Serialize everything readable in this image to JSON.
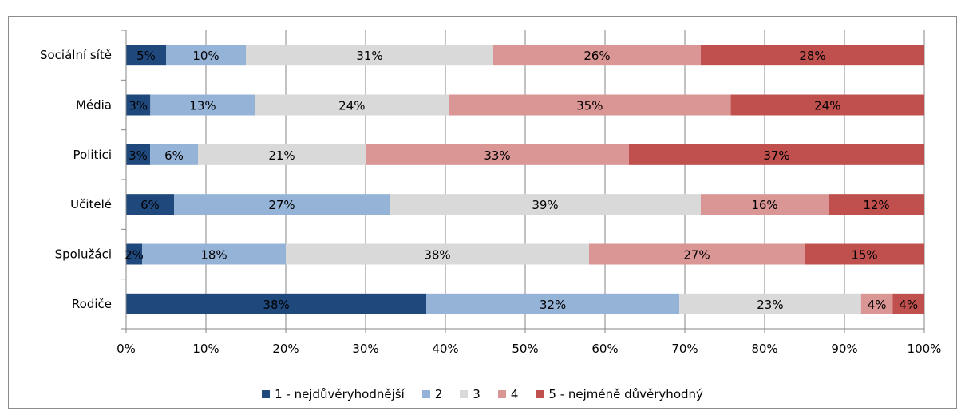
{
  "chart_data": {
    "type": "bar",
    "orientation": "horizontal",
    "stacked": "percent",
    "categories": [
      "Sociální sítě",
      "Média",
      "Politici",
      "Učitelé",
      "Spolužáci",
      "Rodiče"
    ],
    "series": [
      {
        "name": "1 - nejdůvěryhodnější",
        "color": "#1f497d",
        "values": [
          5,
          3,
          3,
          6,
          2,
          38
        ],
        "labels": [
          "5%",
          "3%",
          "3%",
          "6%",
          "2%",
          "38%"
        ]
      },
      {
        "name": "2",
        "color": "#95b3d7",
        "values": [
          10,
          13,
          6,
          27,
          18,
          32
        ],
        "labels": [
          "10%",
          "13%",
          "6%",
          "27%",
          "18%",
          "32%"
        ]
      },
      {
        "name": "3",
        "color": "#d9d9d9",
        "values": [
          31,
          24,
          21,
          39,
          38,
          23
        ],
        "labels": [
          "31%",
          "24%",
          "21%",
          "39%",
          "38%",
          "23%"
        ]
      },
      {
        "name": "4",
        "color": "#da9694",
        "values": [
          26,
          35,
          33,
          16,
          27,
          4
        ],
        "labels": [
          "26%",
          "35%",
          "33%",
          "16%",
          "27%",
          "4%"
        ]
      },
      {
        "name": "5 - nejméně důvěryhodný",
        "color": "#c0504d",
        "values": [
          28,
          24,
          37,
          12,
          15,
          4
        ],
        "labels": [
          "28%",
          "24%",
          "37%",
          "12%",
          "15%",
          "4%"
        ]
      }
    ],
    "x_ticks": [
      "0%",
      "10%",
      "20%",
      "30%",
      "40%",
      "50%",
      "60%",
      "70%",
      "80%",
      "90%",
      "100%"
    ],
    "xlim": [
      0,
      100
    ],
    "grid": true,
    "legend_position": "bottom"
  }
}
